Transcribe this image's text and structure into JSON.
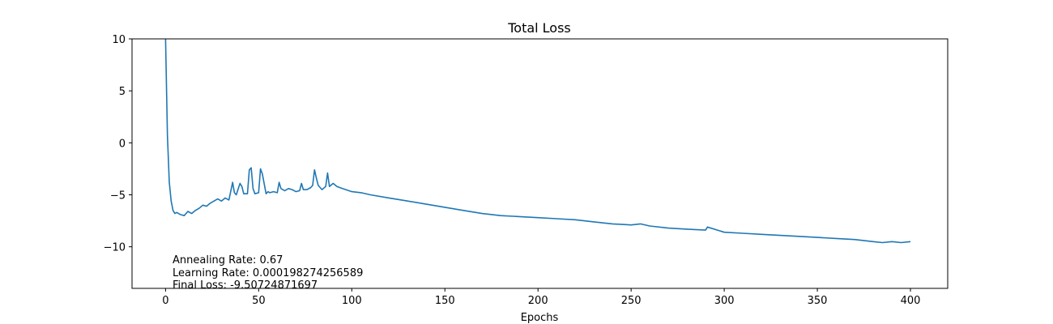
{
  "chart_data": {
    "type": "line",
    "title": "Total Loss",
    "xlabel": "Epochs",
    "ylabel": "",
    "xlim": [
      -18,
      420
    ],
    "ylim": [
      -14,
      10
    ],
    "xticks": [
      0,
      50,
      100,
      150,
      200,
      250,
      300,
      350,
      400
    ],
    "yticks": [
      -10,
      -5,
      0,
      5,
      10
    ],
    "xtick_labels": [
      "0",
      "50",
      "100",
      "150",
      "200",
      "250",
      "300",
      "350",
      "400"
    ],
    "ytick_labels": [
      "−10",
      "−5",
      "0",
      "5",
      "10"
    ],
    "grid": false,
    "line_color": "#1f77b4",
    "annotations": [
      "Annealing Rate: 0.67",
      "Learning Rate: 0.000198274256589",
      "Final Loss: -9.50724871697"
    ],
    "series": [
      {
        "x": [
          0,
          1,
          2,
          3,
          4,
          5,
          6,
          8,
          10,
          12,
          14,
          16,
          18,
          20,
          22,
          24,
          26,
          28,
          30,
          32,
          34,
          36,
          37,
          38,
          40,
          41,
          42,
          44,
          45,
          46,
          47,
          48,
          50,
          51,
          52,
          54,
          55,
          56,
          58,
          60,
          61,
          62,
          64,
          66,
          68,
          70,
          72,
          73,
          74,
          76,
          78,
          79,
          80,
          81,
          82,
          84,
          86,
          87,
          88,
          90,
          92,
          95,
          100,
          105,
          110,
          120,
          130,
          140,
          150,
          160,
          170,
          180,
          190,
          200,
          210,
          220,
          230,
          240,
          250,
          255,
          260,
          270,
          280,
          290,
          291,
          300,
          310,
          320,
          330,
          340,
          350,
          360,
          370,
          380,
          385,
          390,
          395,
          400
        ],
        "y": [
          10,
          0.7,
          -3.8,
          -5.6,
          -6.5,
          -6.8,
          -6.7,
          -6.9,
          -7.0,
          -6.6,
          -6.8,
          -6.5,
          -6.3,
          -6.0,
          -6.1,
          -5.8,
          -5.6,
          -5.4,
          -5.6,
          -5.3,
          -5.5,
          -3.8,
          -4.8,
          -5.0,
          -3.9,
          -4.2,
          -4.9,
          -4.9,
          -2.6,
          -2.4,
          -4.4,
          -4.9,
          -4.8,
          -2.5,
          -3.0,
          -4.9,
          -4.7,
          -4.8,
          -4.7,
          -4.8,
          -3.8,
          -4.4,
          -4.6,
          -4.4,
          -4.5,
          -4.7,
          -4.6,
          -3.9,
          -4.5,
          -4.5,
          -4.3,
          -4.1,
          -2.6,
          -3.4,
          -4.1,
          -4.5,
          -4.2,
          -2.9,
          -4.2,
          -3.9,
          -4.2,
          -4.4,
          -4.7,
          -4.8,
          -5.0,
          -5.3,
          -5.6,
          -5.9,
          -6.2,
          -6.5,
          -6.8,
          -7.0,
          -7.1,
          -7.2,
          -7.3,
          -7.4,
          -7.6,
          -7.8,
          -7.9,
          -7.8,
          -8.0,
          -8.2,
          -8.3,
          -8.4,
          -8.1,
          -8.6,
          -8.7,
          -8.8,
          -8.9,
          -9.0,
          -9.1,
          -9.2,
          -9.3,
          -9.5,
          -9.6,
          -9.5,
          -9.6,
          -9.5
        ]
      }
    ]
  }
}
